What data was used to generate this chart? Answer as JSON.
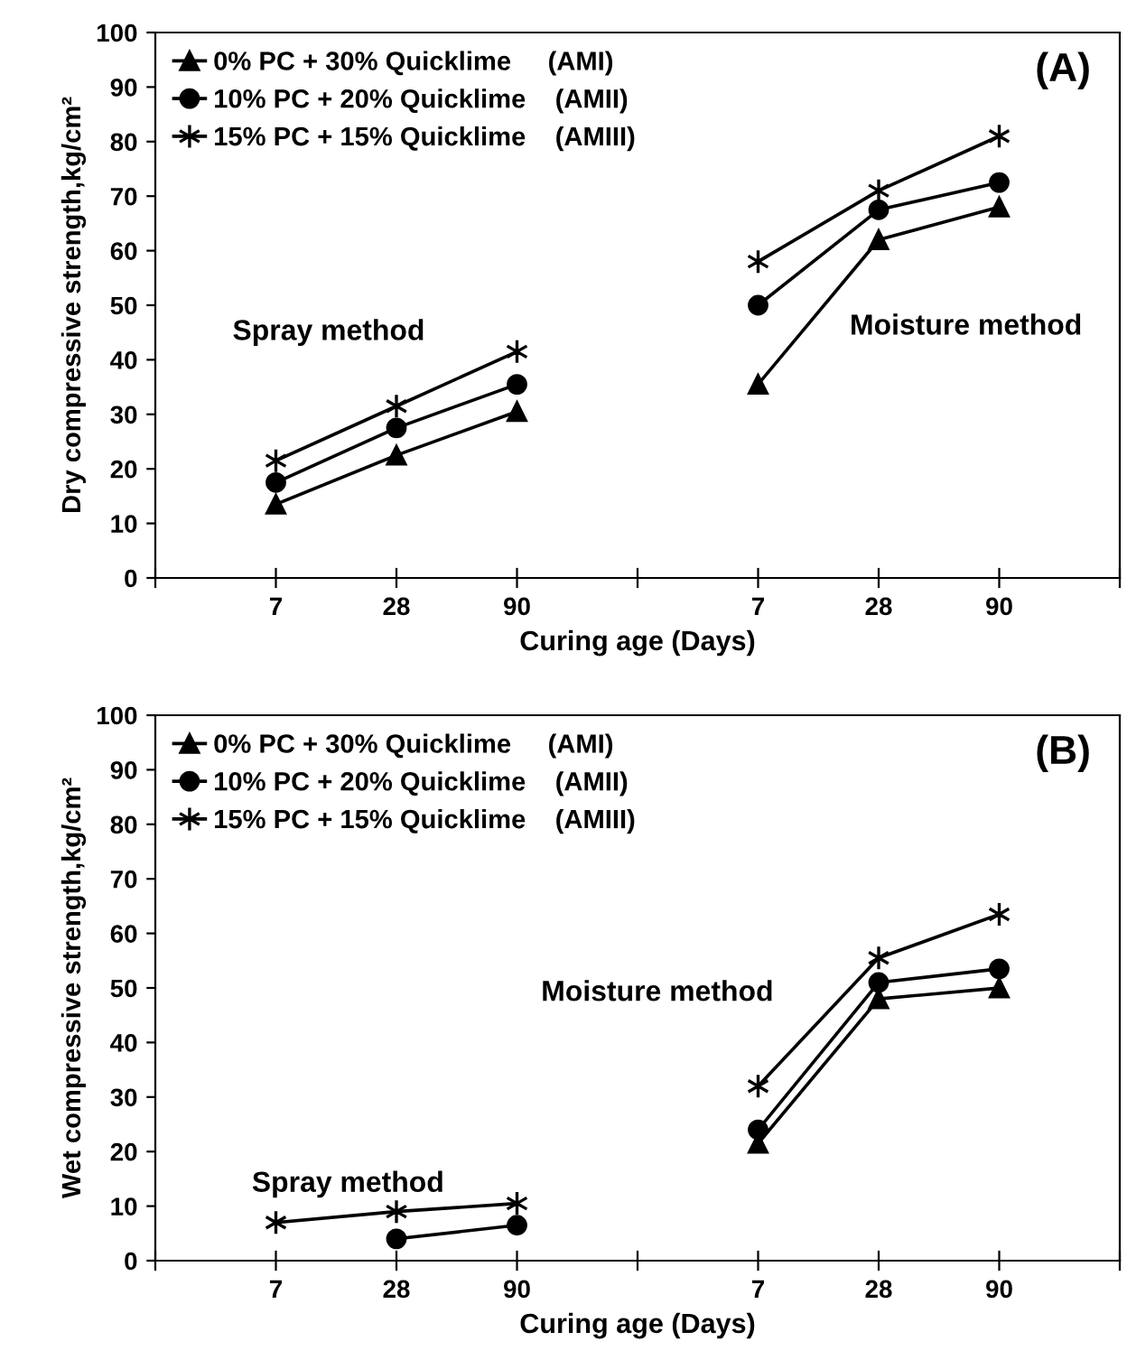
{
  "chart_data": [
    {
      "type": "line",
      "xlabel": "Curing age (Days)",
      "ylabel": "Dry compressive strength,kg/cm²",
      "categories": [
        "7",
        "28",
        "90",
        null,
        "7",
        "28",
        "90"
      ],
      "ylim": [
        0,
        100
      ],
      "yticks": [
        0,
        10,
        20,
        30,
        40,
        50,
        60,
        70,
        80,
        90,
        100
      ],
      "grid": false,
      "legend": "top left",
      "line_style": "solid",
      "annotations": [
        "(A)",
        "Spray method",
        "Moisture method"
      ],
      "series": [
        {
          "name": "0% PC + 30% Quicklime     (AMI)",
          "color": "#000000",
          "marker": "triangle",
          "values": [
            13.5,
            22.5,
            30.5,
            null,
            35.5,
            62,
            68
          ]
        },
        {
          "name": "10% PC + 20% Quicklime    (AMII)",
          "color": "#000000",
          "marker": "circle",
          "values": [
            17.5,
            27.5,
            35.5,
            null,
            50,
            67.5,
            72.5
          ]
        },
        {
          "name": "15% PC + 15% Quicklime    (AMIII)",
          "color": "#000000",
          "marker": "cross",
          "values": [
            21.5,
            31.5,
            41.5,
            null,
            58,
            71,
            81
          ]
        }
      ]
    },
    {
      "type": "line",
      "xlabel": "Curing age (Days)",
      "ylabel": "Wet compressive strength,kg/cm²",
      "categories": [
        "7",
        "28",
        "90",
        null,
        "7",
        "28",
        "90"
      ],
      "ylim": [
        0,
        100
      ],
      "yticks": [
        0,
        10,
        20,
        30,
        40,
        50,
        60,
        70,
        80,
        90,
        100
      ],
      "grid": false,
      "legend": "top left",
      "line_style": "solid",
      "annotations": [
        "(B)",
        "Spray method",
        "Moisture method"
      ],
      "series": [
        {
          "name": "0% PC + 30% Quicklime     (AMI)",
          "color": "#000000",
          "marker": "triangle",
          "values": [
            null,
            null,
            null,
            null,
            21.5,
            48,
            50
          ]
        },
        {
          "name": "10% PC + 20% Quicklime    (AMII)",
          "color": "#000000",
          "marker": "circle",
          "values": [
            null,
            4,
            6.5,
            null,
            24,
            51,
            53.5
          ]
        },
        {
          "name": "15% PC + 15% Quicklime    (AMIII)",
          "color": "#000000",
          "marker": "cross",
          "values": [
            7,
            9,
            10.5,
            null,
            32,
            55.5,
            63.5
          ]
        }
      ]
    }
  ]
}
